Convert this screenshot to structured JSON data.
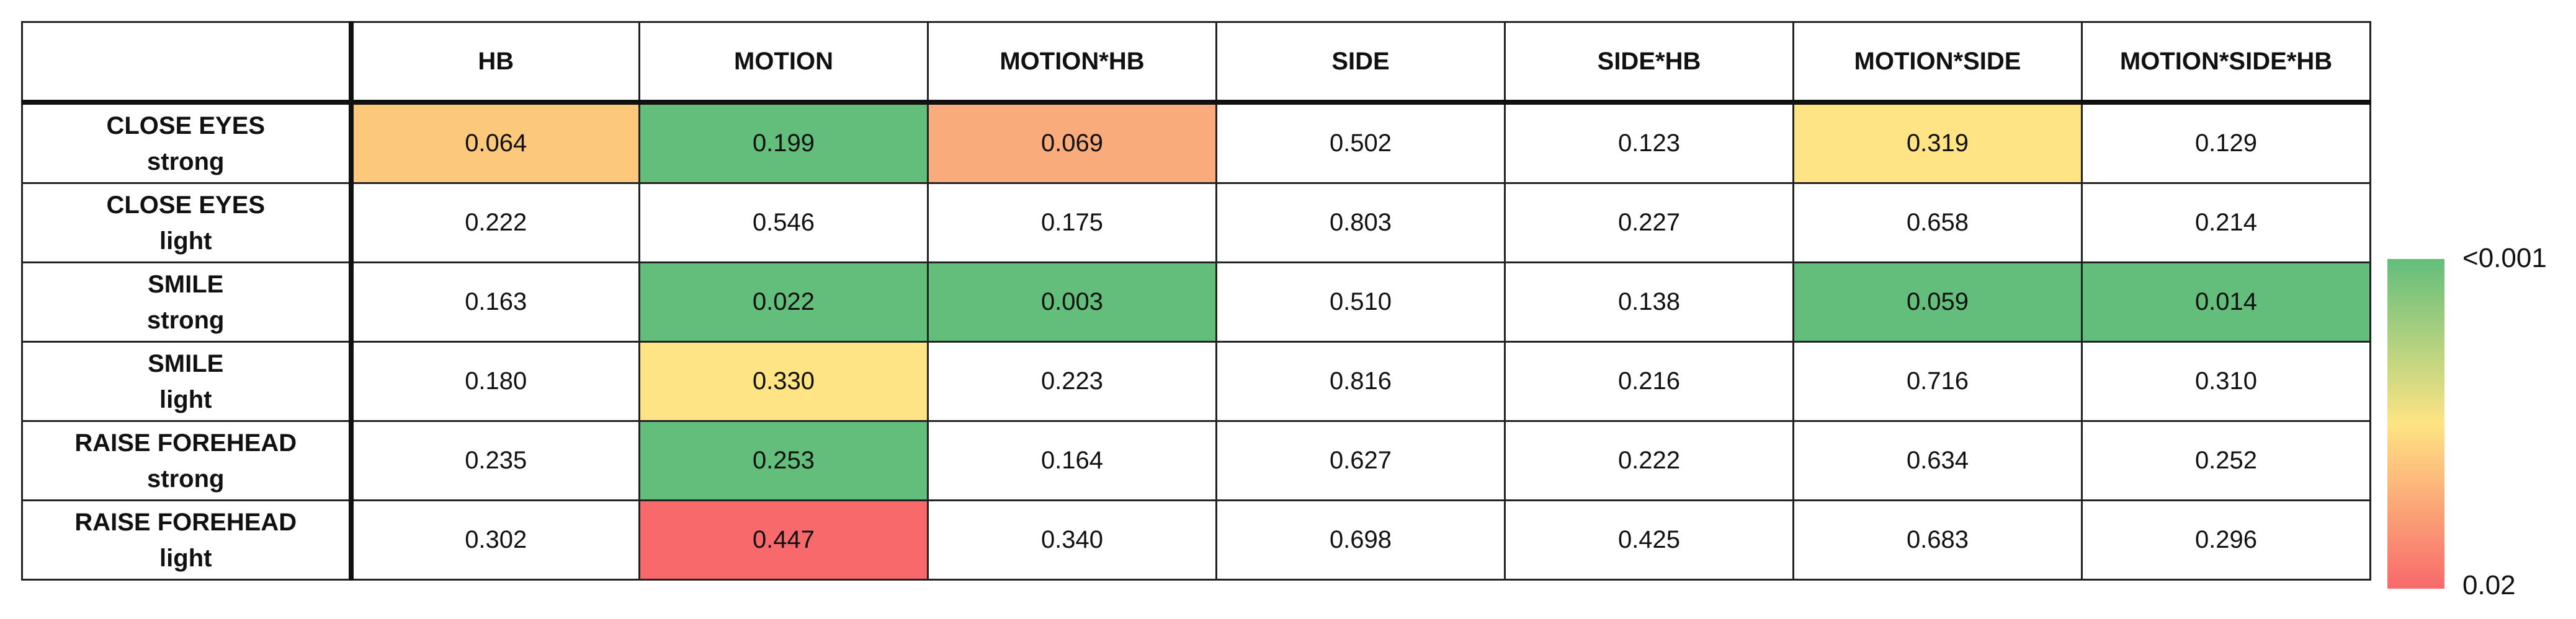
{
  "table": {
    "columns": [
      "HB",
      "MOTION",
      "MOTION*HB",
      "SIDE",
      "SIDE*HB",
      "MOTION*SIDE",
      "MOTION*SIDE*HB"
    ],
    "rows": [
      {
        "label": [
          "CLOSE EYES",
          "strong"
        ],
        "cells": [
          {
            "text": "0.064",
            "color": "#fcc97c"
          },
          {
            "text": "0.199",
            "color": "#63be7b"
          },
          {
            "text": "0.069",
            "color": "#f9ab7b"
          },
          {
            "text": "0.502"
          },
          {
            "text": "0.123"
          },
          {
            "text": "0.319",
            "color": "#fee484"
          },
          {
            "text": "0.129"
          }
        ]
      },
      {
        "label": [
          "CLOSE EYES",
          "light"
        ],
        "cells": [
          {
            "text": "0.222"
          },
          {
            "text": "0.546"
          },
          {
            "text": "0.175"
          },
          {
            "text": "0.803"
          },
          {
            "text": "0.227"
          },
          {
            "text": "0.658"
          },
          {
            "text": "0.214"
          }
        ]
      },
      {
        "label": [
          "SMILE",
          "strong"
        ],
        "cells": [
          {
            "text": "0.163"
          },
          {
            "text": "0.022",
            "color": "#63be7b"
          },
          {
            "text": "0.003",
            "color": "#63be7b"
          },
          {
            "text": "0.510"
          },
          {
            "text": "0.138"
          },
          {
            "text": "0.059",
            "color": "#63be7b"
          },
          {
            "text": "0.014",
            "color": "#63be7b"
          }
        ]
      },
      {
        "label": [
          "SMILE",
          "light"
        ],
        "cells": [
          {
            "text": "0.180"
          },
          {
            "text": "0.330",
            "color": "#fee484"
          },
          {
            "text": "0.223"
          },
          {
            "text": "0.816"
          },
          {
            "text": "0.216"
          },
          {
            "text": "0.716"
          },
          {
            "text": "0.310"
          }
        ]
      },
      {
        "label": [
          "RAISE FOREHEAD",
          "strong"
        ],
        "cells": [
          {
            "text": "0.235"
          },
          {
            "text": "0.253",
            "color": "#63be7b"
          },
          {
            "text": "0.164"
          },
          {
            "text": "0.627"
          },
          {
            "text": "0.222"
          },
          {
            "text": "0.634"
          },
          {
            "text": "0.252"
          }
        ]
      },
      {
        "label": [
          "RAISE FOREHEAD",
          "light"
        ],
        "cells": [
          {
            "text": "0.302"
          },
          {
            "text": "0.447",
            "color": "#f8696b"
          },
          {
            "text": "0.340"
          },
          {
            "text": "0.698"
          },
          {
            "text": "0.425"
          },
          {
            "text": "0.683"
          },
          {
            "text": "0.296"
          }
        ]
      }
    ]
  },
  "colorbar": {
    "colors": [
      "#63be7b",
      "#fee484",
      "#f8696b"
    ],
    "top_label": "<0.001",
    "bottom_label": "0.02"
  }
}
